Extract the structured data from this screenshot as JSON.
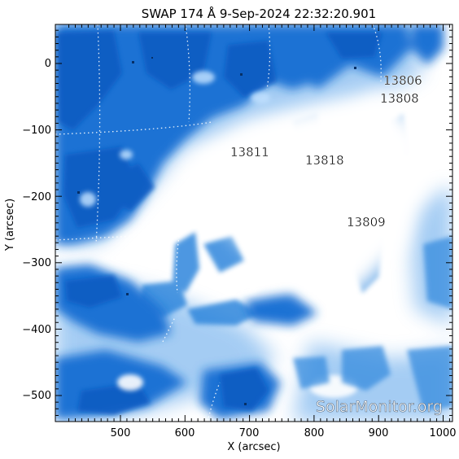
{
  "title": "SWAP 174 Å  9-Sep-2024 22:32:20.901",
  "xlabel": "X (arcsec)",
  "ylabel": "Y (arcsec)",
  "x_ticks": [
    "500",
    "600",
    "700",
    "800",
    "900",
    "1000"
  ],
  "y_ticks": [
    "0",
    "−100",
    "−200",
    "−300",
    "−400",
    "−500"
  ],
  "regions": [
    {
      "label": "13806"
    },
    {
      "label": "13808"
    },
    {
      "label": "13811"
    },
    {
      "label": "13818"
    },
    {
      "label": "13809"
    }
  ],
  "watermark": "SolarMonitor.org",
  "colors": {
    "colormap_dark": "#0a5fc8",
    "colormap_light": "#ffffff",
    "frame": "#000000"
  }
}
